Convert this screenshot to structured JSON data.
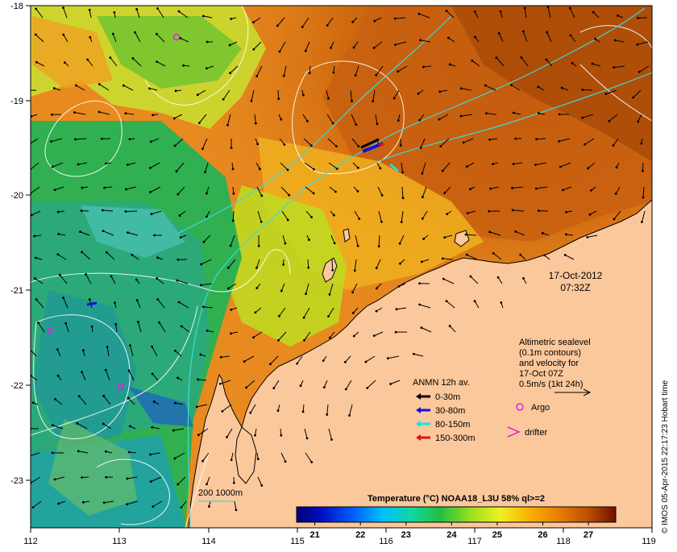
{
  "map": {
    "date_label": "17-Oct-2012",
    "time_label": "07:32Z",
    "credit": "© IMOS 05-Apr-2015 22:17:23 Hobart time",
    "x_ticks": [
      "112",
      "113",
      "114",
      "115",
      "116",
      "117",
      "118",
      "119"
    ],
    "y_ticks": [
      "-18",
      "-19",
      "-20",
      "-21",
      "-22",
      "-23"
    ],
    "altimetry_note": {
      "lines": [
        "Altimetric sealevel",
        "(0.1m contours)",
        "and velocity for",
        "17-Oct 07Z",
        "0.5m/s (1kt 24h)"
      ]
    },
    "anmn": {
      "title": "ANMN 12h av.",
      "items": [
        {
          "label": "0-30m",
          "color": "#000000"
        },
        {
          "label": "30-80m",
          "color": "#1010e0"
        },
        {
          "label": "80-150m",
          "color": "#20e0e0"
        },
        {
          "label": "150-300m",
          "color": "#e01010"
        }
      ]
    },
    "argo_label": "Argo",
    "drifter_label": "drifter",
    "bathy_label": "200  1000m",
    "colorbar": {
      "title": "Temperature (°C) NOAA18_L3U 58% ql>=2",
      "ticks": [
        "21",
        "22",
        "23",
        "24",
        "25",
        "26",
        "27"
      ],
      "min": 20.6,
      "max": 27.6
    },
    "colors": {
      "land": "#fbc89c",
      "warm": "#c06010",
      "cool": "#30b070",
      "argo": "#e020e0"
    }
  }
}
